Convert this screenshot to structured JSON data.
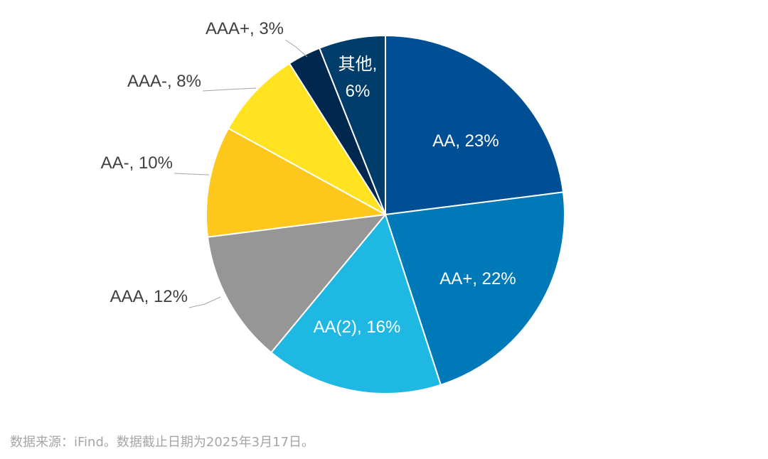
{
  "chart_data": {
    "type": "pie",
    "title": "",
    "slices": [
      {
        "label": "AA",
        "value": 23,
        "display": "AA, 23%",
        "color": "#004F95"
      },
      {
        "label": "AA+",
        "value": 22,
        "display": "AA+, 22%",
        "color": "#0079B8"
      },
      {
        "label": "AA(2)",
        "value": 16,
        "display": "AA(2), 16%",
        "color": "#1EB8E3"
      },
      {
        "label": "AAA",
        "value": 12,
        "display": "AAA, 12%",
        "color": "#969696"
      },
      {
        "label": "AA-",
        "value": 10,
        "display": "AA-, 10%",
        "color": "#FEC71B"
      },
      {
        "label": "AAA-",
        "value": 8,
        "display": "AAA-, 8%",
        "color": "#FFE320"
      },
      {
        "label": "AAA+",
        "value": 3,
        "display": "AAA+, 3%",
        "color": "#00284F"
      },
      {
        "label": "其他",
        "value": 6,
        "display": "其他,\n6%",
        "color": "#003D6B"
      }
    ],
    "start_direction": "12 o'clock",
    "direction": "clockwise"
  },
  "footer": {
    "source": "数据来源：iFind。数据截止日期为2025年3月17日。"
  }
}
